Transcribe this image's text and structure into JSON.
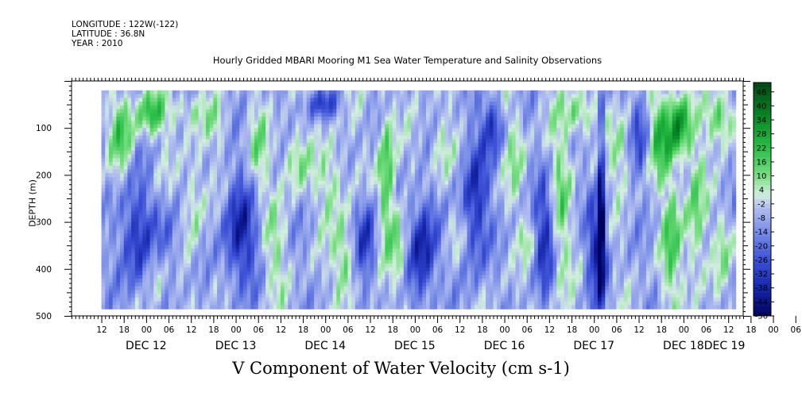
{
  "header": {
    "longitude": "LONGITUDE : 122W(-122)",
    "latitude": "LATITUDE : 36.8N",
    "year": "YEAR : 2010"
  },
  "chart_data": {
    "type": "heatmap",
    "title": "Hourly Gridded MBARI Mooring M1 Sea Water Temperature and Salinity Observations",
    "subtitle": "V Component of Water Velocity (cm s-1)",
    "ylabel": "DEPTH (m)",
    "y_axis": {
      "range": [
        500,
        0
      ],
      "data_range": [
        20,
        485
      ],
      "reversed": true,
      "ticks": [
        100,
        200,
        300,
        400,
        500
      ]
    },
    "x_axis": {
      "range_hours_from_dec12_00": [
        -20,
        160
      ],
      "data_start_hours": -12,
      "data_end_hours": 158,
      "hour_tick_labels": [
        "12",
        "18",
        "00",
        "06",
        "12",
        "18",
        "00",
        "06",
        "12",
        "18",
        "00",
        "06",
        "12",
        "18",
        "00",
        "06",
        "12",
        "18",
        "00",
        "06",
        "12",
        "18",
        "00",
        "06",
        "12",
        "18",
        "00",
        "06",
        "12",
        "18",
        "00",
        "06"
      ],
      "day_labels": [
        "DEC 12",
        "DEC 13",
        "DEC 14",
        "DEC 15",
        "DEC 16",
        "DEC 17",
        "DEC 18",
        "DEC 19"
      ]
    },
    "colorbar": {
      "labels": [
        "46",
        "40",
        "34",
        "28",
        "22",
        "16",
        "10",
        "4",
        "-2",
        "-8",
        "-14",
        "-20",
        "-26",
        "-32",
        "-38",
        "-44",
        "-50"
      ],
      "min": -50,
      "max": 50
    },
    "patterns": [
      {
        "t0": -10,
        "t1": -3,
        "d0": 20,
        "d1": 200,
        "v": 22
      },
      {
        "t0": -3,
        "t1": 6,
        "d0": 20,
        "d1": 120,
        "v": 28
      },
      {
        "t0": 6,
        "t1": 15,
        "d0": 20,
        "d1": 100,
        "v": 14
      },
      {
        "t0": -8,
        "t1": 2,
        "d0": 200,
        "d1": 460,
        "v": -26
      },
      {
        "t0": 2,
        "t1": 10,
        "d0": 250,
        "d1": 420,
        "v": -14
      },
      {
        "t0": 0,
        "t1": 5,
        "d0": 340,
        "d1": 480,
        "v": 12
      },
      {
        "t0": 10,
        "t1": 16,
        "d0": 120,
        "d1": 380,
        "v": 14
      },
      {
        "t0": 14,
        "t1": 22,
        "d0": 30,
        "d1": 140,
        "v": 10
      },
      {
        "t0": 20,
        "t1": 30,
        "d0": 200,
        "d1": 450,
        "v": -30
      },
      {
        "t0": 27,
        "t1": 33,
        "d0": 40,
        "d1": 260,
        "v": 14
      },
      {
        "t0": 31,
        "t1": 38,
        "d0": 250,
        "d1": 480,
        "v": 12
      },
      {
        "t0": 36,
        "t1": 44,
        "d0": 100,
        "d1": 240,
        "v": 18
      },
      {
        "t0": 42,
        "t1": 52,
        "d0": 20,
        "d1": 80,
        "v": -20
      },
      {
        "t0": 46,
        "t1": 54,
        "d0": 120,
        "d1": 320,
        "v": 16
      },
      {
        "t0": 50,
        "t1": 56,
        "d0": 300,
        "d1": 470,
        "v": 22
      },
      {
        "t0": 56,
        "t1": 62,
        "d0": 240,
        "d1": 440,
        "v": -28
      },
      {
        "t0": 62,
        "t1": 67,
        "d0": 40,
        "d1": 380,
        "v": 28
      },
      {
        "t0": 65,
        "t1": 70,
        "d0": 280,
        "d1": 460,
        "v": 20
      },
      {
        "t0": 70,
        "t1": 78,
        "d0": 240,
        "d1": 480,
        "v": -34
      },
      {
        "t0": 76,
        "t1": 82,
        "d0": 60,
        "d1": 220,
        "v": 14
      },
      {
        "t0": 80,
        "t1": 86,
        "d0": 260,
        "d1": 380,
        "v": 10
      },
      {
        "t0": 84,
        "t1": 92,
        "d0": 100,
        "d1": 420,
        "v": -28
      },
      {
        "t0": 90,
        "t1": 96,
        "d0": 30,
        "d1": 160,
        "v": -24
      },
      {
        "t0": 96,
        "t1": 102,
        "d0": 30,
        "d1": 260,
        "v": 12
      },
      {
        "t0": 100,
        "t1": 104,
        "d0": 300,
        "d1": 380,
        "v": 12
      },
      {
        "t0": 104,
        "t1": 110,
        "d0": 200,
        "d1": 460,
        "v": -26
      },
      {
        "t0": 108,
        "t1": 114,
        "d0": 30,
        "d1": 480,
        "v": 16
      },
      {
        "t0": 112,
        "t1": 120,
        "d0": 20,
        "d1": 120,
        "v": 22
      },
      {
        "t0": 118,
        "t1": 124,
        "d0": 240,
        "d1": 480,
        "v": -30
      },
      {
        "t0": 121,
        "t1": 123,
        "d0": 20,
        "d1": 485,
        "v": -36
      },
      {
        "t0": 124,
        "t1": 130,
        "d0": 60,
        "d1": 240,
        "v": 16
      },
      {
        "t0": 130,
        "t1": 136,
        "d0": 20,
        "d1": 200,
        "v": -22
      },
      {
        "t0": 134,
        "t1": 142,
        "d0": 20,
        "d1": 200,
        "v": 32
      },
      {
        "t0": 140,
        "t1": 146,
        "d0": 20,
        "d1": 160,
        "v": 36
      },
      {
        "t0": 138,
        "t1": 144,
        "d0": 180,
        "d1": 485,
        "v": 22
      },
      {
        "t0": 144,
        "t1": 150,
        "d0": 100,
        "d1": 460,
        "v": 20
      },
      {
        "t0": 150,
        "t1": 158,
        "d0": 20,
        "d1": 140,
        "v": 26
      },
      {
        "t0": 152,
        "t1": 158,
        "d0": 260,
        "d1": 440,
        "v": 12
      }
    ]
  }
}
